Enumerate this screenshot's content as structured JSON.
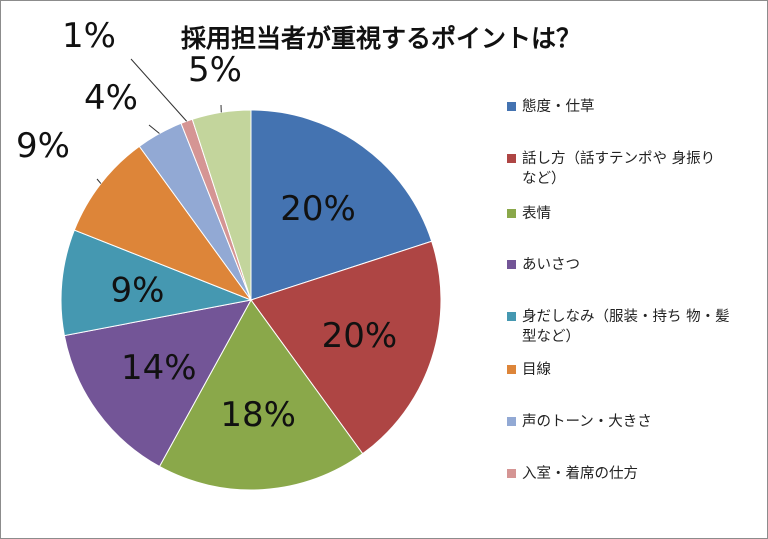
{
  "chart_data": {
    "type": "pie",
    "title": "採用担当者が重視するポイントは？",
    "slices": [
      {
        "label": "態度・仕草",
        "value": 20,
        "display": "20%",
        "color": "#4473b1"
      },
      {
        "label": "話し方（話すテンポや身振りなど）",
        "display_lines": [
          "話し方（話すテンポや 身振り",
          "など）"
        ],
        "value": 20,
        "display": "20%",
        "color": "#ae4544"
      },
      {
        "label": "表情",
        "value": 18,
        "display": "18%",
        "color": "#8aa84a"
      },
      {
        "label": "あいさつ",
        "value": 14,
        "display": "14%",
        "color": "#735597"
      },
      {
        "label": "身だしなみ（服装・持ち物・髪型など）",
        "display_lines": [
          "身だしなみ（服装・持ち 物・髪",
          "型など）"
        ],
        "value": 9,
        "display": "9%",
        "color": "#4598b1"
      },
      {
        "label": "目線",
        "value": 9,
        "display": "9%",
        "color": "#dd8539"
      },
      {
        "label": "声のトーン・大きさ",
        "value": 4,
        "display": "4%",
        "color": "#92a9d4"
      },
      {
        "label": "入室・着席の仕方",
        "value": 1,
        "display": "1%",
        "color": "#d59594"
      },
      {
        "label": "",
        "value": 5,
        "display": "5%",
        "color": "#c3d59c"
      }
    ],
    "start_angle": "12 o'clock",
    "direction": "clockwise",
    "legend_position": "right"
  }
}
